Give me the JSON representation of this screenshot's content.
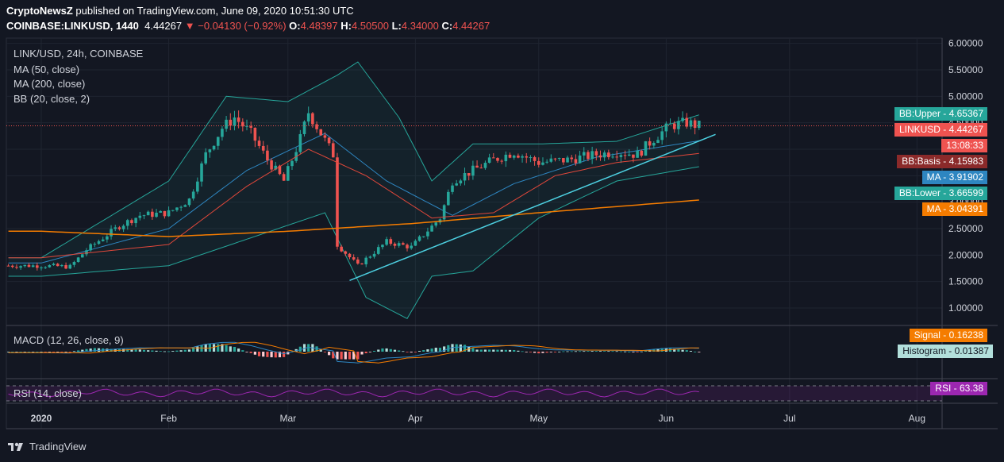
{
  "header": {
    "publisher_line_bold": "CryptoNewsZ",
    "publisher_line_rest": " published on TradingView.com, June 09, 2020 10:51:30 UTC",
    "symbol": "COINBASE:LINKUSD, 1440",
    "last": "4.44267",
    "change": "−0.04130 (−0.92%)",
    "open_label": "O:",
    "open": "4.48397",
    "high_label": "H:",
    "high": "4.50500",
    "low_label": "L:",
    "low": "4.34000",
    "close_label": "C:",
    "close": "4.44267"
  },
  "legend": {
    "title": "LINK/USD, 24h, COINBASE",
    "ma50": "MA (50, close)",
    "ma200": "MA (200, close)",
    "bb": "BB (20, close, 2)",
    "macd": "MACD (12, 26, close, 9)",
    "rsi": "RSI (14, close)"
  },
  "badges": [
    {
      "key": "BB:Upper",
      "value": "4.65367",
      "color": "#26a69a"
    },
    {
      "key": "LINKUSD",
      "value": "4.44267",
      "color": "#ef5350"
    },
    {
      "key": "",
      "value": "13:08:33",
      "color": "#ef5350"
    },
    {
      "key": "BB:Basis",
      "value": "4.15983",
      "color": "#8b2a2a"
    },
    {
      "key": "MA",
      "value": "3.91902",
      "color": "#2e86c1"
    },
    {
      "key": "BB:Lower",
      "value": "3.66599",
      "color": "#26a69a"
    },
    {
      "key": "MA",
      "value": "3.04391",
      "color": "#f57c00"
    },
    {
      "key": "Signal",
      "value": "0.16238",
      "color": "#f57c00"
    },
    {
      "key": "Histogram",
      "value": "0.01387",
      "color": "#b2dfdb"
    },
    {
      "key": "RSI",
      "value": "63.38",
      "color": "#9c27b0"
    }
  ],
  "footer": {
    "brand": "TradingView"
  },
  "colors": {
    "up": "#26a69a",
    "down": "#ef5350",
    "ma50": "#e0473a",
    "ma200": "#f57c00",
    "bb": "#26a69a",
    "trend": "#4dd0e1"
  },
  "chart_data": {
    "type": "candlestick",
    "title": "LINK/USD, 24h, COINBASE",
    "y_ticks": [
      "6.00000",
      "5.50000",
      "5.00000",
      "4.50000",
      "4.00000",
      "3.50000",
      "3.00000",
      "2.50000",
      "2.00000",
      "1.50000",
      "1.00000"
    ],
    "x_ticks": [
      "2020",
      "Feb",
      "Mar",
      "Apr",
      "May",
      "Jun",
      "Jul",
      "Aug"
    ],
    "ylim": [
      0.7,
      6.1
    ],
    "price_anchors": [
      [
        "2020-01-01",
        1.8
      ],
      [
        "2020-01-08",
        1.78
      ],
      [
        "2020-01-12",
        2.1
      ],
      [
        "2020-01-20",
        2.55
      ],
      [
        "2020-01-25",
        2.75
      ],
      [
        "2020-02-01",
        2.8
      ],
      [
        "2020-02-06",
        3.05
      ],
      [
        "2020-02-10",
        3.9
      ],
      [
        "2020-02-14",
        4.4
      ],
      [
        "2020-02-17",
        4.6
      ],
      [
        "2020-02-21",
        4.3
      ],
      [
        "2020-02-25",
        3.8
      ],
      [
        "2020-02-29",
        3.4
      ],
      [
        "2020-03-04",
        4.2
      ],
      [
        "2020-03-06",
        4.7
      ],
      [
        "2020-03-09",
        4.3
      ],
      [
        "2020-03-12",
        3.9
      ],
      [
        "2020-03-13",
        2.2
      ],
      [
        "2020-03-18",
        1.8
      ],
      [
        "2020-03-25",
        2.25
      ],
      [
        "2020-03-31",
        2.15
      ],
      [
        "2020-04-07",
        2.7
      ],
      [
        "2020-04-10",
        3.4
      ],
      [
        "2020-04-15",
        3.6
      ],
      [
        "2020-04-20",
        3.8
      ],
      [
        "2020-04-25",
        3.95
      ],
      [
        "2020-05-01",
        3.75
      ],
      [
        "2020-05-08",
        3.8
      ],
      [
        "2020-05-15",
        3.9
      ],
      [
        "2020-05-20",
        3.95
      ],
      [
        "2020-05-25",
        3.9
      ],
      [
        "2020-05-29",
        4.2
      ],
      [
        "2020-06-02",
        4.45
      ],
      [
        "2020-06-06",
        4.5
      ],
      [
        "2020-06-09",
        4.44
      ]
    ],
    "ma50": [
      [
        "2020-01-01",
        1.95
      ],
      [
        "2020-02-01",
        2.2
      ],
      [
        "2020-02-20",
        3.3
      ],
      [
        "2020-03-06",
        4.0
      ],
      [
        "2020-03-20",
        3.5
      ],
      [
        "2020-04-05",
        2.7
      ],
      [
        "2020-04-20",
        2.8
      ],
      [
        "2020-05-05",
        3.5
      ],
      [
        "2020-05-20",
        3.75
      ],
      [
        "2020-06-09",
        3.92
      ]
    ],
    "ma200": [
      [
        "2020-01-01",
        2.45
      ],
      [
        "2020-02-01",
        2.35
      ],
      [
        "2020-03-01",
        2.45
      ],
      [
        "2020-04-01",
        2.6
      ],
      [
        "2020-05-01",
        2.8
      ],
      [
        "2020-06-09",
        3.04
      ]
    ],
    "bb_upper": [
      [
        "2020-01-01",
        1.95
      ],
      [
        "2020-02-01",
        3.4
      ],
      [
        "2020-02-15",
        5.0
      ],
      [
        "2020-03-01",
        4.9
      ],
      [
        "2020-03-13",
        5.4
      ],
      [
        "2020-03-18",
        5.65
      ],
      [
        "2020-03-28",
        4.6
      ],
      [
        "2020-04-05",
        3.4
      ],
      [
        "2020-04-15",
        4.1
      ],
      [
        "2020-05-01",
        4.1
      ],
      [
        "2020-05-20",
        4.15
      ],
      [
        "2020-06-09",
        4.65
      ]
    ],
    "bb_basis": [
      [
        "2020-01-01",
        1.85
      ],
      [
        "2020-02-01",
        2.5
      ],
      [
        "2020-02-20",
        3.6
      ],
      [
        "2020-03-10",
        4.3
      ],
      [
        "2020-03-25",
        3.4
      ],
      [
        "2020-04-10",
        2.75
      ],
      [
        "2020-04-25",
        3.35
      ],
      [
        "2020-05-15",
        3.85
      ],
      [
        "2020-06-09",
        4.16
      ]
    ],
    "bb_lower": [
      [
        "2020-01-01",
        1.6
      ],
      [
        "2020-02-01",
        1.8
      ],
      [
        "2020-02-20",
        2.3
      ],
      [
        "2020-03-10",
        2.8
      ],
      [
        "2020-03-20",
        1.2
      ],
      [
        "2020-03-30",
        0.8
      ],
      [
        "2020-04-05",
        1.6
      ],
      [
        "2020-04-15",
        1.7
      ],
      [
        "2020-05-01",
        2.7
      ],
      [
        "2020-05-20",
        3.4
      ],
      [
        "2020-06-09",
        3.67
      ]
    ],
    "trendline": [
      [
        "2020-03-16",
        1.52
      ],
      [
        "2020-06-13",
        4.28
      ]
    ],
    "macd": {
      "signal_last": 0.16238,
      "histogram_last": 0.01387
    },
    "rsi": {
      "last": 63.38,
      "levels": [
        70,
        30
      ]
    }
  }
}
